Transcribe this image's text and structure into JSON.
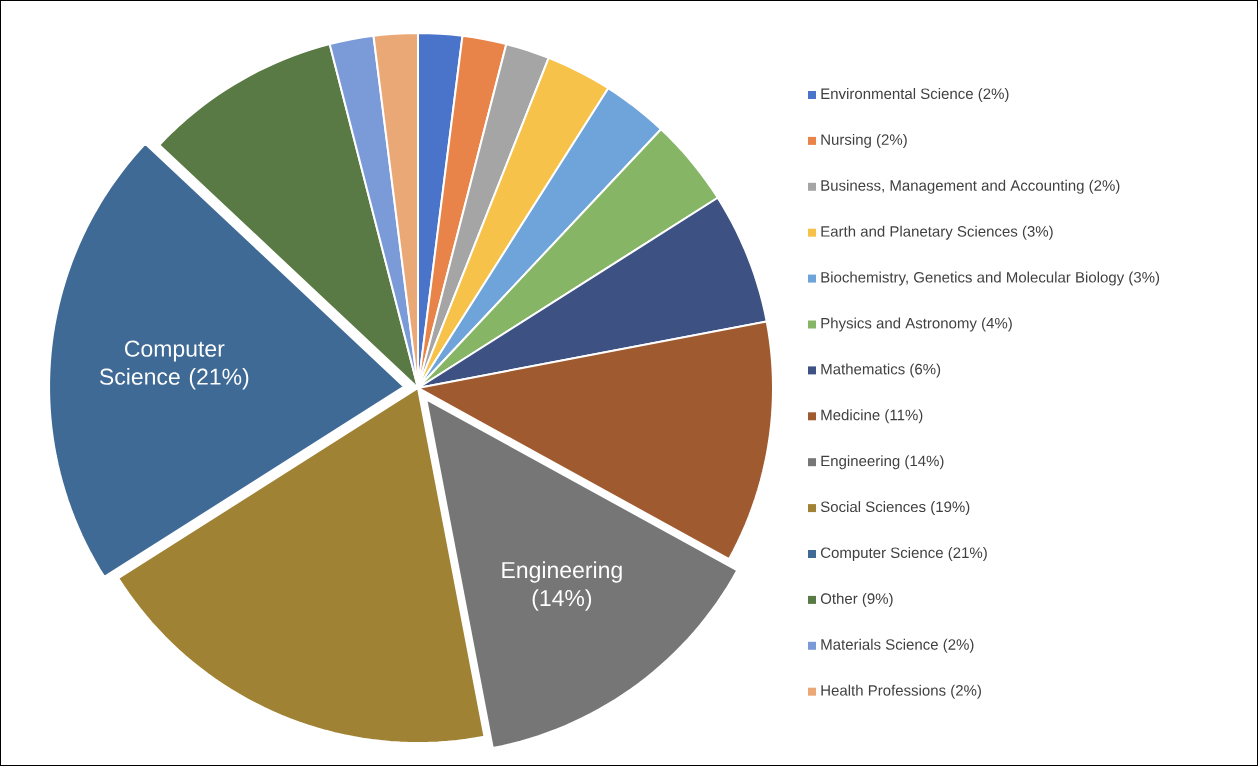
{
  "chart_data": {
    "type": "pie",
    "categories": [
      "Environmental Science (2%)",
      "Nursing (2%)",
      "Business, Management and Accounting (2%)",
      "Earth and Planetary Sciences (3%)",
      "Biochemistry, Genetics and Molecular Biology (3%)",
      "Physics and Astronomy (4%)",
      "Mathematics (6%)",
      "Medicine (11%)",
      "Engineering (14%)",
      "Social Sciences (19%)",
      "Computer Science (21%)",
      "Other (9%)",
      "Materials Science (2%)",
      "Health Professions (2%)"
    ],
    "values": [
      2,
      2,
      2,
      3,
      3,
      4,
      6,
      11,
      14,
      19,
      21,
      9,
      2,
      2
    ],
    "colors": [
      "#4a74c9",
      "#e8844a",
      "#a5a5a5",
      "#f7c24a",
      "#6ea4d9",
      "#86b566",
      "#3d5183",
      "#a05a2f",
      "#767676",
      "#a08234",
      "#3f6a96",
      "#5a7a45",
      "#7b9bd8",
      "#eba877"
    ],
    "legend": "right",
    "annotations": [
      {
        "text": "Computer Science (21%)",
        "x": "Computer Science (21%)"
      },
      {
        "text": "Engineering (14%)",
        "x": "Engineering (14%)"
      }
    ]
  }
}
